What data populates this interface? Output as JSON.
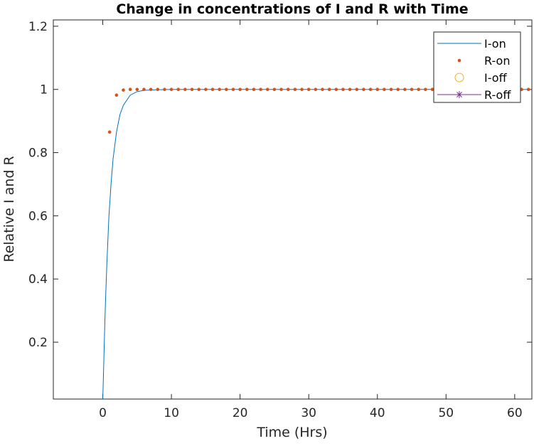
{
  "chart_data": {
    "type": "line",
    "title": "Change in concentrations of I and R with Time",
    "xlabel": "Time (Hrs)",
    "ylabel": "Relative I and R",
    "xlim": [
      -7.2,
      62.5
    ],
    "ylim": [
      0.02,
      1.22
    ],
    "xticks": [
      0,
      10,
      20,
      30,
      40,
      50,
      60
    ],
    "yticks": [
      0.2,
      0.4,
      0.6,
      0.8,
      1,
      1.2
    ],
    "xtick_labels": [
      "0",
      "10",
      "20",
      "30",
      "40",
      "50",
      "60"
    ],
    "ytick_labels": [
      "0.2",
      "0.4",
      "0.6",
      "0.8",
      "1",
      "1.2"
    ],
    "grid": false,
    "legend_position": "top-right",
    "series": [
      {
        "name": "I-on",
        "style": "line",
        "color": "#0072BD",
        "x": [
          0,
          0.1,
          0.2,
          0.3,
          0.4,
          0.5,
          0.6,
          0.7,
          0.8,
          0.9,
          1,
          1.2,
          1.5,
          2,
          2.5,
          3,
          4,
          5,
          6,
          8,
          10,
          62.5
        ],
        "y": [
          0.02,
          0.095,
          0.18,
          0.26,
          0.33,
          0.39,
          0.45,
          0.5,
          0.55,
          0.6,
          0.633,
          0.7,
          0.78,
          0.865,
          0.92,
          0.95,
          0.982,
          0.993,
          0.997,
          0.999,
          1,
          1
        ]
      },
      {
        "name": "R-on",
        "style": "dots",
        "color": "#D95319",
        "x": [
          1,
          2,
          3,
          4,
          5,
          6,
          7,
          8,
          9,
          10,
          11,
          12,
          13,
          14,
          15,
          16,
          17,
          18,
          19,
          20,
          21,
          22,
          23,
          24,
          25,
          26,
          27,
          28,
          29,
          30,
          31,
          32,
          33,
          34,
          35,
          36,
          37,
          38,
          39,
          40,
          41,
          42,
          43,
          44,
          45,
          46,
          47,
          48,
          49,
          50,
          51,
          52,
          53,
          54,
          55,
          56,
          57,
          58,
          59,
          60,
          61,
          62
        ],
        "y": [
          0.865,
          0.982,
          0.998,
          1,
          1,
          1,
          1,
          1,
          1,
          1,
          1,
          1,
          1,
          1,
          1,
          1,
          1,
          1,
          1,
          1,
          1,
          1,
          1,
          1,
          1,
          1,
          1,
          1,
          1,
          1,
          1,
          1,
          1,
          1,
          1,
          1,
          1,
          1,
          1,
          1,
          1,
          1,
          1,
          1,
          1,
          1,
          1,
          1,
          1,
          1,
          1,
          1,
          1,
          1,
          1,
          1,
          1,
          1,
          1,
          1,
          1,
          1
        ]
      },
      {
        "name": "I-off",
        "style": "circle",
        "color": "#EDB120",
        "x": [],
        "y": []
      },
      {
        "name": "R-off",
        "style": "star-line",
        "color": "#7E2F8E",
        "x": [],
        "y": []
      }
    ]
  }
}
